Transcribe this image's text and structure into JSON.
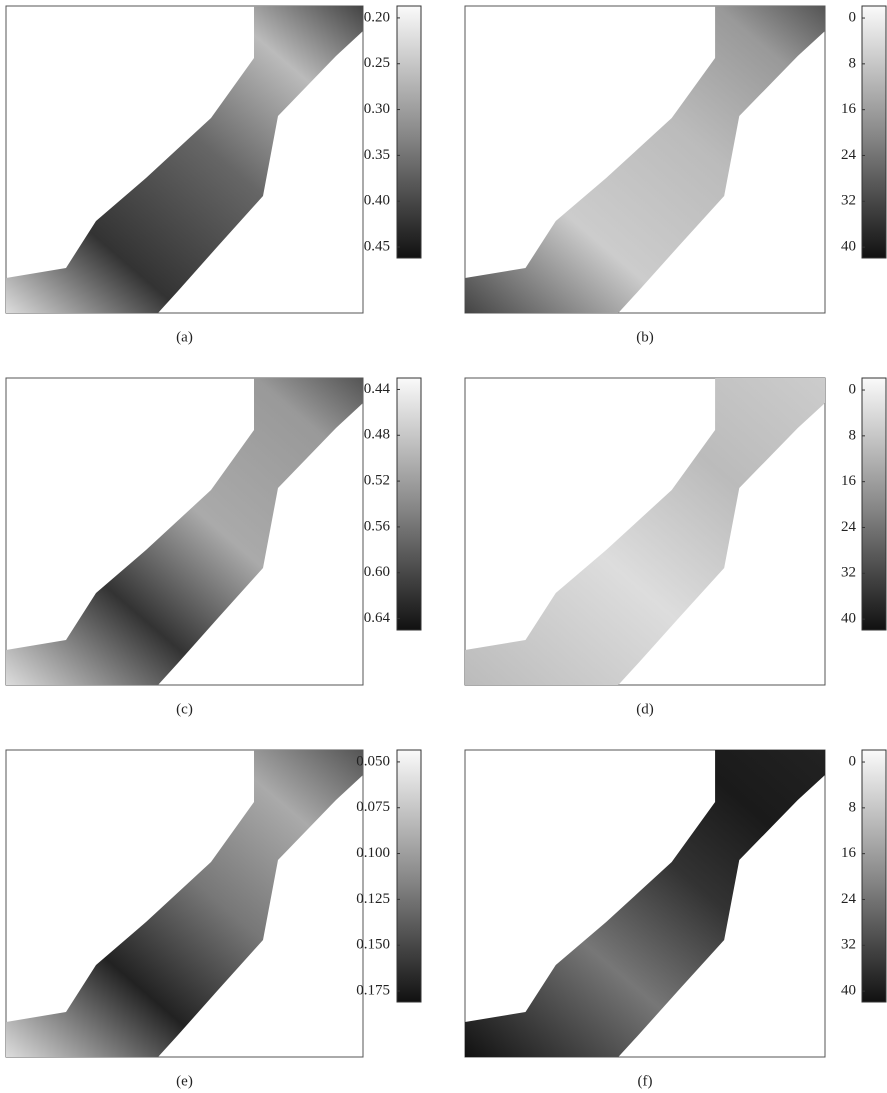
{
  "chart_data": [
    {
      "type": "heatmap",
      "caption": "(a)",
      "clim": [
        0.187,
        0.462
      ],
      "cticks": [
        {
          "value": 0.2,
          "label": "0.20"
        },
        0.25,
        {
          "value": 0.3,
          "label": "0.30"
        },
        0.35,
        {
          "value": 0.4,
          "label": "0.40"
        },
        0.45
      ]
    },
    {
      "type": "heatmap",
      "caption": "(b)",
      "clim": [
        -2.1,
        41.9
      ],
      "cticks": [
        0,
        8,
        16,
        24,
        32,
        40
      ]
    },
    {
      "type": "heatmap",
      "caption": "(c)",
      "clim": [
        0.43,
        0.65
      ],
      "cticks": [
        0.44,
        0.48,
        0.52,
        0.56,
        {
          "value": 0.6,
          "label": "0.60"
        },
        0.64
      ]
    },
    {
      "type": "heatmap",
      "caption": "(d)",
      "clim": [
        -2.1,
        41.9
      ],
      "cticks": [
        0,
        8,
        16,
        24,
        32,
        40
      ]
    },
    {
      "type": "heatmap",
      "caption": "(e)",
      "clim": [
        0.0435,
        0.181
      ],
      "cticks": [
        {
          "value": 0.05,
          "label": "0.050"
        },
        0.075,
        {
          "value": 0.1,
          "label": "0.100"
        },
        0.125,
        {
          "value": 0.15,
          "label": "0.150"
        },
        0.175
      ]
    },
    {
      "type": "heatmap",
      "caption": "(f)",
      "clim": [
        -2.1,
        41.9
      ],
      "cticks": [
        0,
        8,
        16,
        24,
        32,
        40
      ]
    }
  ]
}
